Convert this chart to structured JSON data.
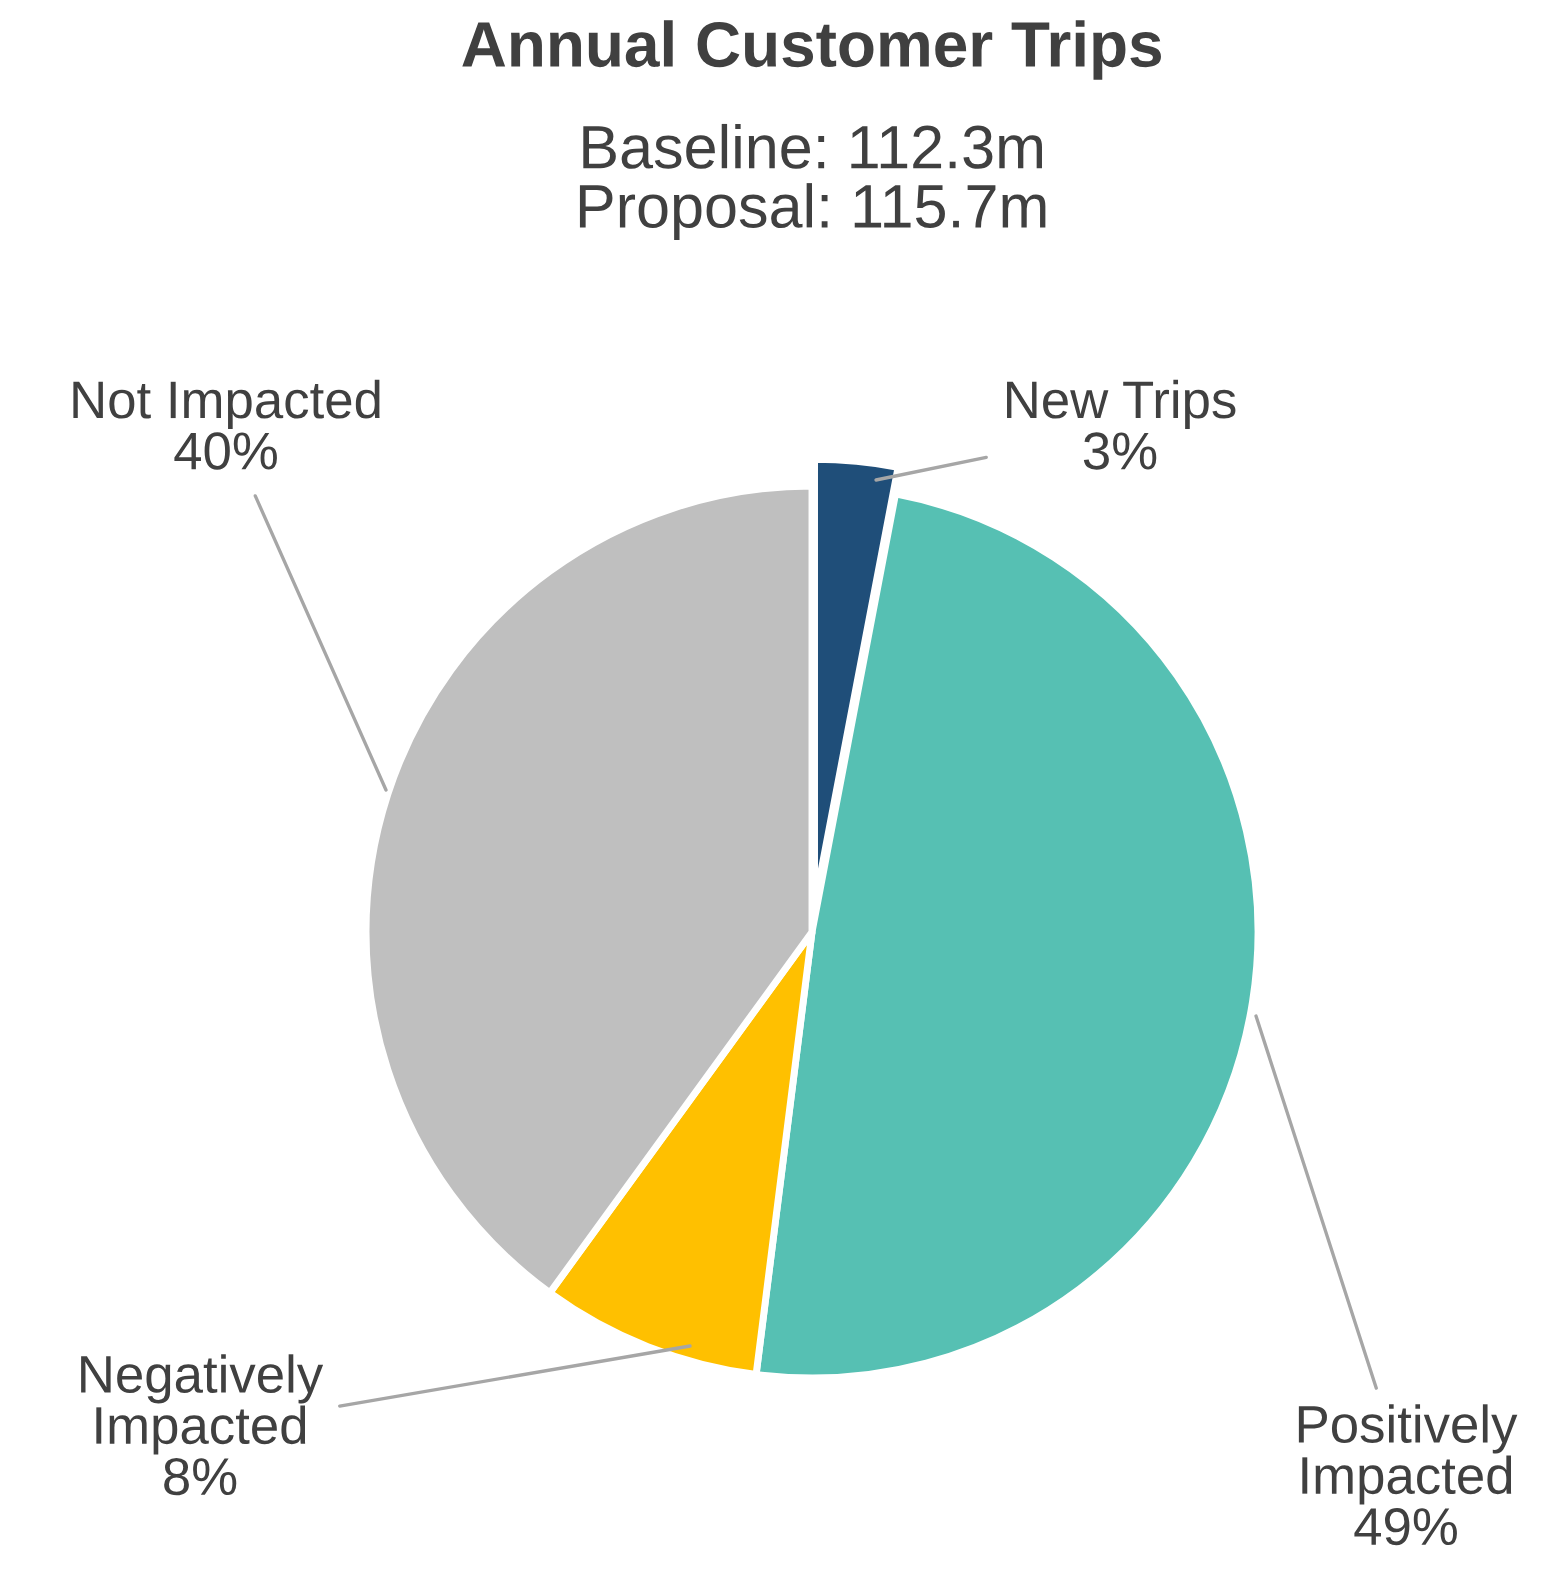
{
  "chart_data": {
    "type": "pie",
    "title": "Annual Customer Trips",
    "subtitle": "Baseline: 112.3m\nProposal: 115.7m",
    "categories": [
      "New Trips",
      "Positively Impacted",
      "Negatively Impacted",
      "Not Impacted"
    ],
    "values": [
      3,
      49,
      8,
      40
    ],
    "colors": [
      "#1f4e79",
      "#56c0b3",
      "#ffc000",
      "#bfbfbf"
    ],
    "value_labels": [
      "3%",
      "49%",
      "8%",
      "40%"
    ],
    "legend": false
  }
}
